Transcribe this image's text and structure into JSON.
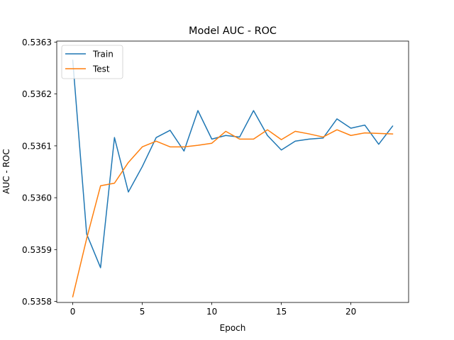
{
  "chart_data": {
    "type": "line",
    "title": "Model AUC - ROC",
    "xlabel": "Epoch",
    "ylabel": "AUC - ROC",
    "xlim": [
      -1.15,
      24.15
    ],
    "ylim": [
      0.535798,
      0.536302
    ],
    "x_ticks": [
      0,
      5,
      10,
      15,
      20
    ],
    "y_ticks": [
      0.5358,
      0.5359,
      0.536,
      0.5361,
      0.5362,
      0.5363
    ],
    "x_tick_labels": [
      "0",
      "5",
      "10",
      "15",
      "20"
    ],
    "y_tick_labels": [
      "0.5358",
      "0.5359",
      "0.5360",
      "0.5361",
      "0.5362",
      "0.5363"
    ],
    "grid": false,
    "legend_position": "top-left",
    "x": [
      0,
      1,
      2,
      3,
      4,
      5,
      6,
      7,
      8,
      9,
      10,
      11,
      12,
      13,
      14,
      15,
      16,
      17,
      18,
      19,
      20,
      21,
      22,
      23
    ],
    "series": [
      {
        "name": "Train",
        "color": "#1f77b4",
        "values": [
          0.536265,
          0.53593,
          0.535865,
          0.536116,
          0.536011,
          0.53606,
          0.536116,
          0.53613,
          0.53609,
          0.536168,
          0.536113,
          0.53612,
          0.536117,
          0.536168,
          0.53612,
          0.536092,
          0.536109,
          0.536113,
          0.536115,
          0.536152,
          0.536134,
          0.53614,
          0.536103,
          0.536138
        ]
      },
      {
        "name": "Test",
        "color": "#ff7f0e",
        "values": [
          0.535809,
          0.535921,
          0.536023,
          0.536028,
          0.536068,
          0.536098,
          0.536109,
          0.536098,
          0.536098,
          0.536101,
          0.536105,
          0.536128,
          0.536113,
          0.536113,
          0.536131,
          0.536112,
          0.536128,
          0.536123,
          0.536117,
          0.536131,
          0.53612,
          0.536125,
          0.536124,
          0.536123
        ]
      }
    ]
  }
}
